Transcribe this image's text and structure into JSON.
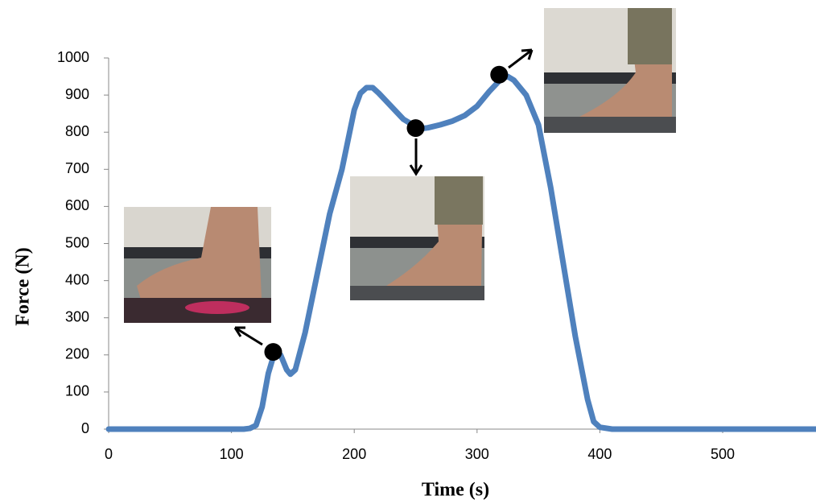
{
  "chart_data": {
    "type": "line",
    "x_label": "Time (s)",
    "y_label": "Force (N)",
    "x": [
      0,
      20,
      40,
      60,
      80,
      100,
      110,
      115,
      120,
      125,
      130,
      135,
      140,
      145,
      148,
      152,
      160,
      170,
      180,
      190,
      195,
      200,
      205,
      210,
      215,
      220,
      230,
      240,
      250,
      255,
      260,
      270,
      280,
      290,
      300,
      310,
      320,
      325,
      330,
      340,
      350,
      360,
      370,
      380,
      390,
      395,
      400,
      410,
      450,
      500,
      550,
      576
    ],
    "values": [
      0,
      0,
      0,
      0,
      0,
      0,
      0,
      2,
      10,
      60,
      150,
      205,
      200,
      160,
      148,
      160,
      260,
      420,
      580,
      700,
      780,
      860,
      905,
      920,
      920,
      905,
      870,
      835,
      815,
      810,
      812,
      820,
      830,
      845,
      870,
      910,
      945,
      950,
      940,
      900,
      820,
      650,
      450,
      250,
      80,
      20,
      5,
      0,
      0,
      0,
      0,
      0
    ],
    "color": "#4f81bd",
    "highlights": [
      {
        "x": 134,
        "y": 208
      },
      {
        "x": 250,
        "y": 811
      },
      {
        "x": 318,
        "y": 955
      }
    ],
    "xlim": [
      0,
      576
    ],
    "ylim": [
      0,
      1000
    ],
    "xticks": [
      0,
      100,
      200,
      300,
      400,
      500
    ],
    "yticks": [
      0,
      100,
      200,
      300,
      400,
      500,
      600,
      700,
      800,
      900,
      1000
    ],
    "grid": false
  }
}
